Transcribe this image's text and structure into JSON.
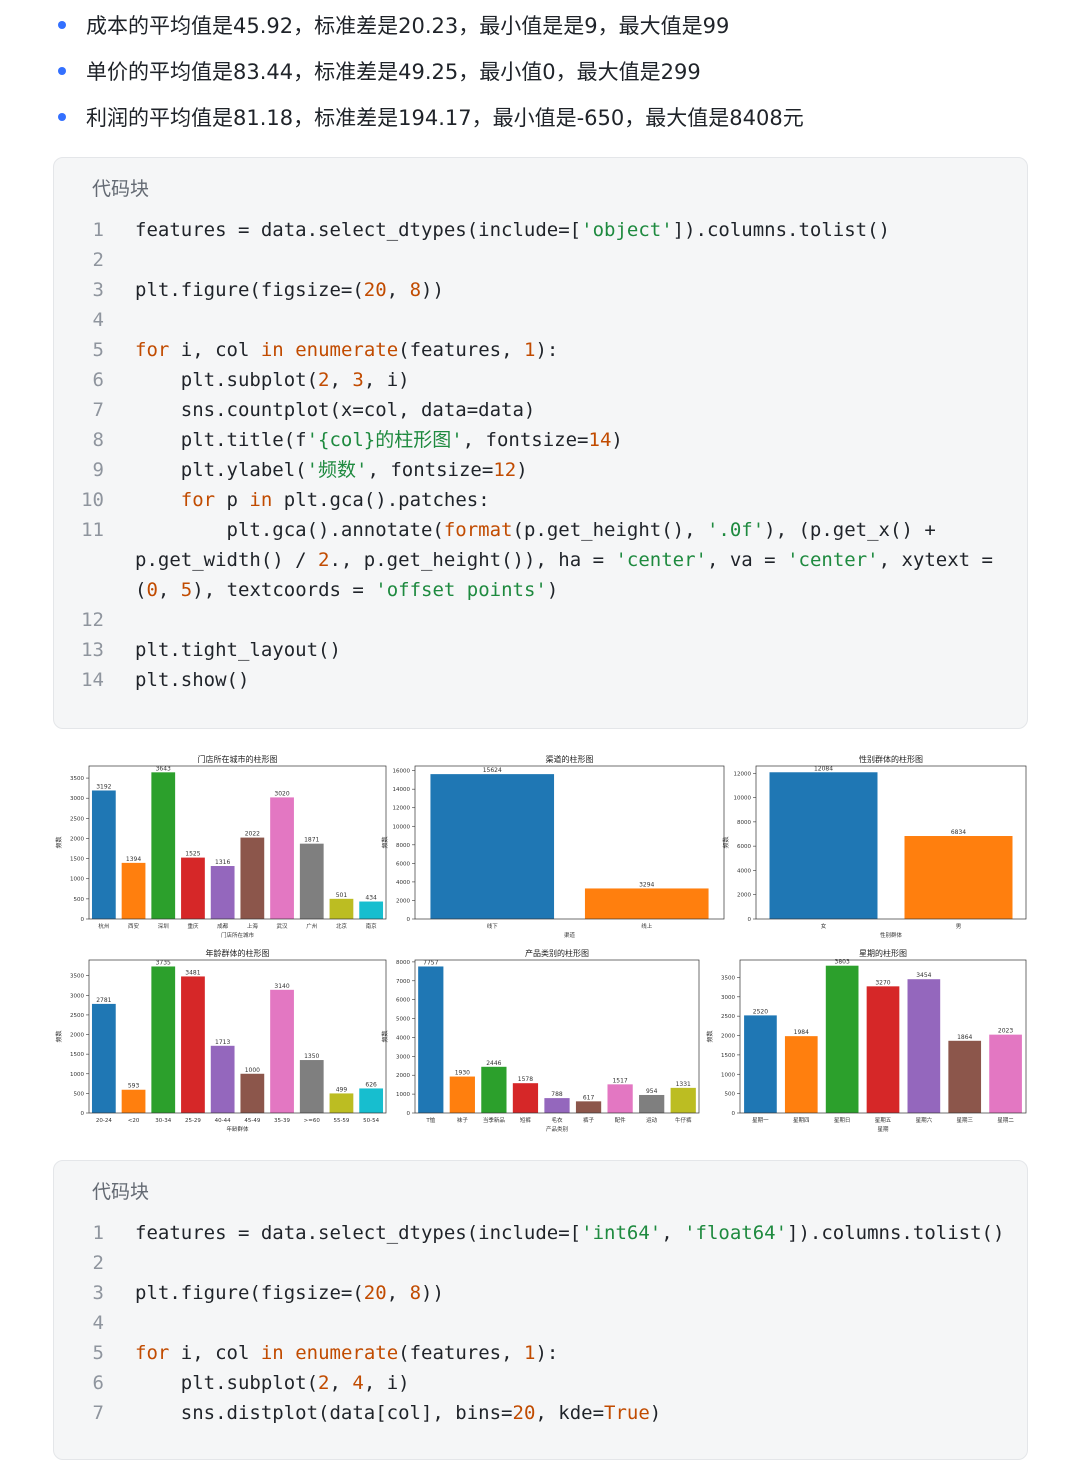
{
  "bullets": [
    "成本的平均值是45.92，标准差是20.23，最小值是是9，最大值是99",
    "单价的平均值是83.44，标准差是49.25，最小值0，最大值是299",
    "利润的平均值是81.18，标准差是194.17，最小值是-650，最大值是8408元"
  ],
  "code_block_1": {
    "title": "代码块",
    "lines": [
      {
        "n": "1",
        "code": "features = data.select_dtypes(include=['object']).columns.tolist()"
      },
      {
        "n": "2",
        "code": ""
      },
      {
        "n": "3",
        "code": "plt.figure(figsize=(20, 8))"
      },
      {
        "n": "4",
        "code": ""
      },
      {
        "n": "5",
        "code": "for i, col in enumerate(features, 1):"
      },
      {
        "n": "6",
        "code": "    plt.subplot(2, 3, i)"
      },
      {
        "n": "7",
        "code": "    sns.countplot(x=col, data=data)"
      },
      {
        "n": "8",
        "code": "    plt.title(f'{col}的柱形图', fontsize=14)"
      },
      {
        "n": "9",
        "code": "    plt.ylabel('频数', fontsize=12)"
      },
      {
        "n": "10",
        "code": "    for p in plt.gca().patches:"
      },
      {
        "n": "11",
        "code": "        plt.gca().annotate(format(p.get_height(), '.0f'), (p.get_x() +"
      },
      {
        "n": "",
        "code": "p.get_width() / 2., p.get_height()), ha = 'center', va = 'center', xytext ="
      },
      {
        "n": "",
        "code": "(0, 5), textcoords = 'offset points')"
      },
      {
        "n": "12",
        "code": ""
      },
      {
        "n": "13",
        "code": "plt.tight_layout()"
      },
      {
        "n": "14",
        "code": "plt.show()"
      }
    ]
  },
  "code_block_2": {
    "title": "代码块",
    "lines": [
      {
        "n": "1",
        "code": "features = data.select_dtypes(include=['int64', 'float64']).columns.tolist()"
      },
      {
        "n": "2",
        "code": ""
      },
      {
        "n": "3",
        "code": "plt.figure(figsize=(20, 8))"
      },
      {
        "n": "4",
        "code": ""
      },
      {
        "n": "5",
        "code": "for i, col in enumerate(features, 1):"
      },
      {
        "n": "6",
        "code": "    plt.subplot(2, 4, i)"
      },
      {
        "n": "7",
        "code": "    sns.distplot(data[col], bins=20, kde=True)"
      }
    ]
  },
  "palette": [
    "#1f77b4",
    "#ff7f0e",
    "#2ca02c",
    "#d62728",
    "#9467bd",
    "#8c564b",
    "#e377c2",
    "#7f7f7f",
    "#bcbd22",
    "#17becf"
  ],
  "chart_data": [
    {
      "type": "bar",
      "title": "门店所在城市的柱形图",
      "xlabel": "门店所在城市",
      "ylabel": "频数",
      "categories": [
        "杭州",
        "西安",
        "深圳",
        "重庆",
        "成都",
        "上海",
        "武汉",
        "广州",
        "北京",
        "南京"
      ],
      "values": [
        3192,
        1394,
        3643,
        1525,
        1316,
        2022,
        3020,
        1871,
        501,
        434
      ],
      "ylim": [
        0,
        3800
      ],
      "yticks": [
        0,
        500,
        1000,
        1500,
        2000,
        2500,
        3000,
        3500
      ]
    },
    {
      "type": "bar",
      "title": "渠道的柱形图",
      "xlabel": "渠道",
      "ylabel": "频数",
      "categories": [
        "线下",
        "线上"
      ],
      "values": [
        15624,
        3294
      ],
      "ylim": [
        0,
        16500
      ],
      "yticks": [
        0,
        2000,
        4000,
        6000,
        8000,
        10000,
        12000,
        14000,
        16000
      ]
    },
    {
      "type": "bar",
      "title": "性别群体的柱形图",
      "xlabel": "性别群体",
      "ylabel": "频数",
      "categories": [
        "女",
        "男"
      ],
      "values": [
        12084,
        6834
      ],
      "ylim": [
        0,
        12600
      ],
      "yticks": [
        0,
        2000,
        4000,
        6000,
        8000,
        10000,
        12000
      ]
    },
    {
      "type": "bar",
      "title": "年龄群体的柱形图",
      "xlabel": "年龄群体",
      "ylabel": "频数",
      "categories": [
        "20-24",
        "<20",
        "30-34",
        "25-29",
        "40-44",
        "45-49",
        "35-39",
        ">=60",
        "55-59",
        "50-54"
      ],
      "values": [
        2781,
        593,
        3735,
        3481,
        1713,
        1000,
        3140,
        1350,
        499,
        626
      ],
      "ylim": [
        0,
        3900
      ],
      "yticks": [
        0,
        500,
        1000,
        1500,
        2000,
        2500,
        3000,
        3500
      ]
    },
    {
      "type": "bar",
      "title": "产品类别的柱形图",
      "xlabel": "产品类别",
      "ylabel": "频数",
      "categories": [
        "T恤",
        "袜子",
        "当季新品",
        "短裤",
        "毛衣",
        "裤子",
        "配件",
        "运动",
        "牛仔裤"
      ],
      "values": [
        7757,
        1930,
        2446,
        1578,
        788,
        617,
        1517,
        954,
        1331
      ],
      "ylim": [
        0,
        8100
      ],
      "yticks": [
        0,
        1000,
        2000,
        3000,
        4000,
        5000,
        6000,
        7000,
        8000
      ]
    },
    {
      "type": "bar",
      "title": "星期的柱形图",
      "xlabel": "星期",
      "ylabel": "频数",
      "categories": [
        "星期一",
        "星期四",
        "星期日",
        "星期五",
        "星期六",
        "星期三",
        "星期二"
      ],
      "values": [
        2520,
        1984,
        3803,
        3270,
        3454,
        1864,
        2023
      ],
      "ylim": [
        0,
        3950
      ],
      "yticks": [
        0,
        500,
        1000,
        1500,
        2000,
        2500,
        3000,
        3500
      ]
    }
  ]
}
